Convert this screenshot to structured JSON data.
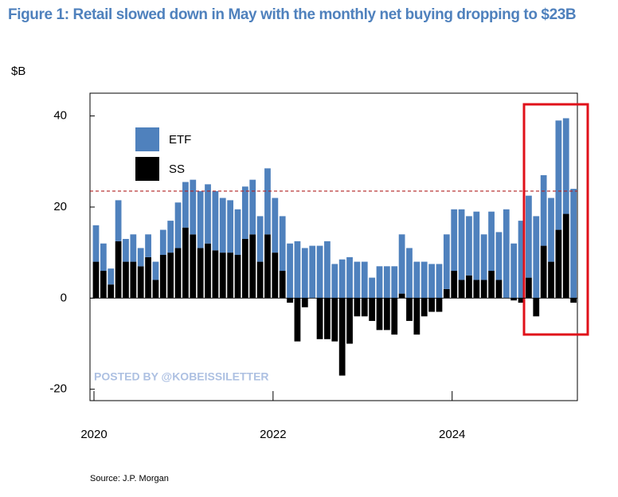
{
  "chart_data": {
    "type": "stacked_bar",
    "title": "Figure 1: Retail slowed down in May with the monthly net buying dropping to $23B",
    "y_unit": "$B",
    "source": "Source: J.P. Morgan",
    "watermark": "POSTED BY @KOBEISSILETTER",
    "categories": [
      "2020",
      null,
      null,
      null,
      null,
      null,
      null,
      null,
      null,
      null,
      null,
      null,
      null,
      null,
      null,
      null,
      null,
      null,
      null,
      null,
      null,
      null,
      null,
      null,
      "2022",
      null,
      null,
      null,
      null,
      null,
      null,
      null,
      null,
      null,
      null,
      null,
      null,
      null,
      null,
      null,
      null,
      null,
      null,
      null,
      null,
      null,
      null,
      null,
      "2024",
      null,
      null,
      null,
      null,
      null,
      null,
      null,
      null,
      null,
      null,
      null,
      null,
      null,
      null,
      null,
      null
    ],
    "series": [
      {
        "name": "ETF",
        "color": "#4f81bd",
        "values": [
          8,
          6,
          3.5,
          9,
          5,
          6,
          4,
          5,
          4,
          5.5,
          7,
          10,
          10,
          12,
          12.5,
          13,
          13,
          12,
          11.5,
          10,
          11.5,
          12,
          10,
          14.5,
          12,
          12,
          12,
          12.5,
          11,
          11.5,
          11.5,
          12.5,
          7.5,
          8.5,
          9,
          8,
          8,
          4.5,
          7,
          7,
          7,
          13,
          11,
          8,
          8,
          7.5,
          7.5,
          12,
          13.5,
          15.5,
          13,
          15,
          10,
          13,
          10.5,
          19.5,
          12,
          17,
          18,
          18,
          15.5,
          14,
          24,
          21,
          24
        ]
      },
      {
        "name": "SS",
        "color": "#000000",
        "values": [
          8,
          6,
          3,
          12.5,
          8,
          8,
          7,
          9,
          4,
          9.5,
          10,
          11,
          15.5,
          14,
          11,
          12,
          10.5,
          10,
          10,
          9.5,
          13,
          14,
          8,
          14,
          10,
          6,
          -1,
          -9.5,
          -2,
          0,
          -9,
          -9,
          -9.5,
          -17,
          -10,
          -4,
          -4,
          -5,
          -7,
          -7,
          -8,
          1,
          -5,
          -8,
          -4,
          -3,
          -3,
          2,
          6,
          4,
          5,
          4,
          4,
          6,
          4,
          0,
          -0.5,
          -1,
          4.5,
          -4,
          11.5,
          8,
          15,
          18.5,
          -1
        ]
      }
    ],
    "ylim": [
      -22.5,
      45
    ],
    "yticks": [
      -20,
      0,
      20,
      40
    ],
    "reference_line": 23.5,
    "legend": "top-left"
  }
}
